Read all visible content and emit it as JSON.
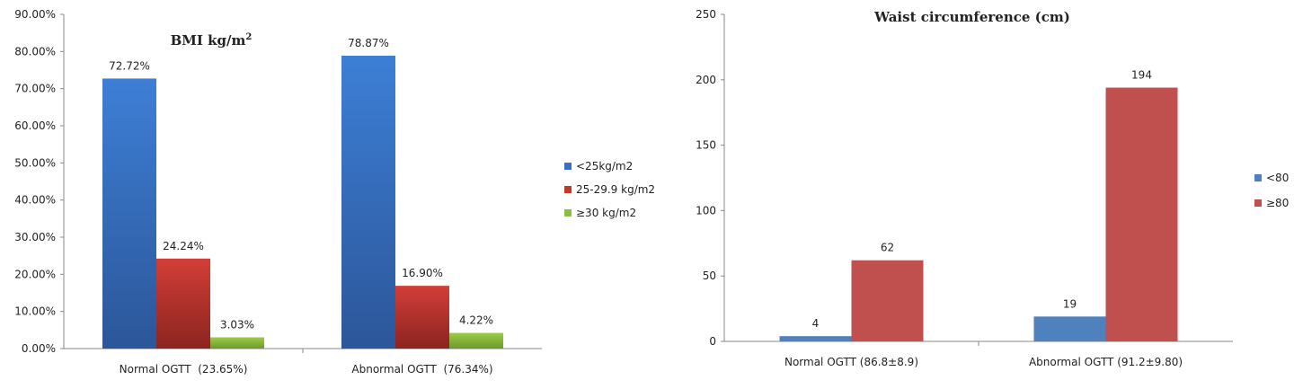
{
  "chart_data": [
    {
      "type": "bar",
      "title": "BMI kg/m",
      "title_superscript": "2",
      "categories": [
        "Normal OGTT  (23.65%)",
        "Abnormal OGTT  (76.34%)"
      ],
      "series": [
        {
          "name": "<25kg/m2",
          "values": [
            72.72,
            78.87
          ],
          "labels": [
            "72.72%",
            "78.87%"
          ],
          "color": "#3a6fc4"
        },
        {
          "name": "25-29.9 kg/m2",
          "values": [
            24.24,
            16.9
          ],
          "labels": [
            "24.24%",
            "16.90%"
          ],
          "color": "#c0392b"
        },
        {
          "name": "≥30 kg/m2",
          "values": [
            3.03,
            4.22
          ],
          "labels": [
            "3.03%",
            "4.22%"
          ],
          "color": "#8cbf3f"
        }
      ],
      "ylim": [
        0,
        90
      ],
      "yticks": [
        "0.00%",
        "10.00%",
        "20.00%",
        "30.00%",
        "40.00%",
        "50.00%",
        "60.00%",
        "70.00%",
        "80.00%",
        "90.00%"
      ],
      "legend": "right",
      "grid": false
    },
    {
      "type": "bar",
      "title": "Waist circumference (cm)",
      "categories": [
        "Normal OGTT (86.8±8.9)",
        "Abnormal OGTT (91.2±9.80)"
      ],
      "series": [
        {
          "name": "<80",
          "values": [
            4,
            19
          ],
          "labels": [
            "4",
            "19"
          ],
          "color": "#4f81bd"
        },
        {
          "name": "≥80",
          "values": [
            62,
            194
          ],
          "labels": [
            "62",
            "194"
          ],
          "color": "#c0504d"
        }
      ],
      "ylim": [
        0,
        250
      ],
      "yticks": [
        "0",
        "50",
        "100",
        "150",
        "200",
        "250"
      ],
      "legend": "right",
      "grid": false
    }
  ]
}
